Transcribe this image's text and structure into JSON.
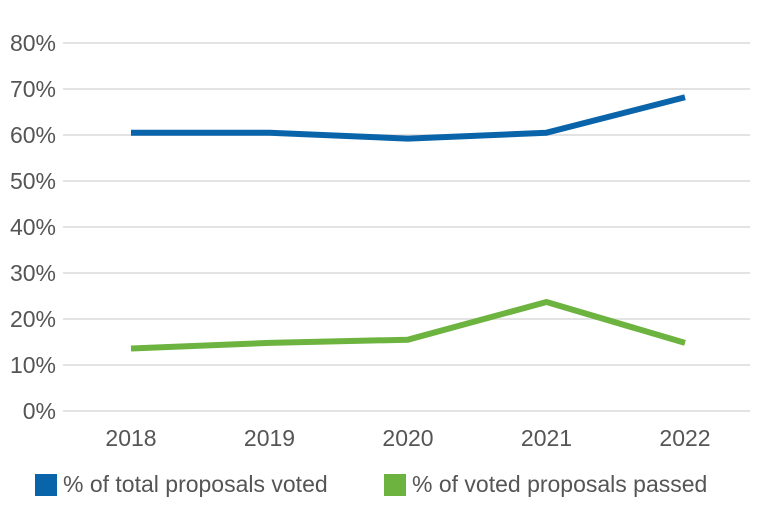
{
  "chart_data": {
    "type": "line",
    "title": "",
    "xlabel": "",
    "ylabel": "",
    "categories": [
      "2018",
      "2019",
      "2020",
      "2021",
      "2022"
    ],
    "ylim": [
      0,
      80
    ],
    "yticks": [
      "0%",
      "10%",
      "20%",
      "30%",
      "40%",
      "50%",
      "60%",
      "70%",
      "80%"
    ],
    "grid": true,
    "legend_position": "bottom",
    "series": [
      {
        "name": "% of total proposals voted",
        "color": "#0A64AA",
        "values": [
          60.5,
          60.5,
          59.2,
          60.5,
          68.2
        ]
      },
      {
        "name": "% of voted proposals passed",
        "color": "#6DB33F",
        "values": [
          13.6,
          14.8,
          15.5,
          23.7,
          14.8
        ]
      }
    ]
  }
}
